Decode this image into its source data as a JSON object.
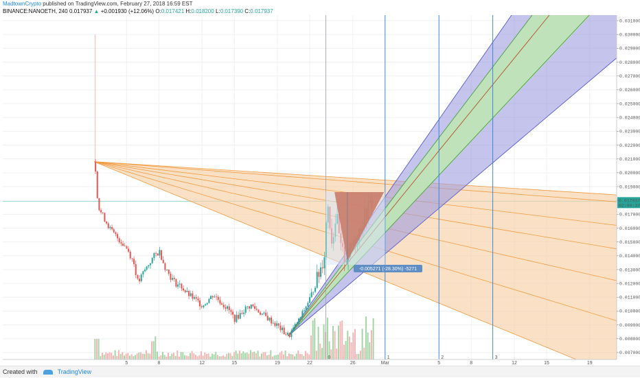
{
  "header": {
    "author": "MadtownCrypto",
    "published": " published on TradingView.com, February 27, 2018 16:59 EST",
    "symbol": "BINANCE:NANOETH, 240",
    "last": "0.017937",
    "change": "+0.001930 (+12.06%)",
    "open_label": "O:",
    "open": "0.017421",
    "high_label": "H:",
    "high": "0.018200",
    "low_label": "L:",
    "low": "0.017390",
    "close_label": "C:",
    "close": "0.017937"
  },
  "footer": {
    "created_with": "Created with",
    "brand": "TradingView"
  },
  "chart_data": {
    "type": "candlestick",
    "y_ticks": [
      "0.031000",
      "0.030000",
      "0.029000",
      "0.028000",
      "0.027000",
      "0.026000",
      "0.025000",
      "0.024000",
      "0.023000",
      "0.022000",
      "0.021000",
      "0.020000",
      "0.019000",
      "0.018000",
      "0.017000",
      "0.016000",
      "0.015000",
      "0.014000",
      "0.013000",
      "0.012000",
      "0.011000",
      "0.010000",
      "0.009000",
      "0.008000",
      "0.007000"
    ],
    "ylim": [
      0.0065,
      0.0314
    ],
    "x_ticks": [
      {
        "label": "5",
        "d": 5
      },
      {
        "label": "8",
        "d": 8
      },
      {
        "label": "12",
        "d": 12
      },
      {
        "label": "15",
        "d": 15
      },
      {
        "label": "19",
        "d": 19
      },
      {
        "label": "22",
        "d": 22
      },
      {
        "label": "26",
        "d": 26
      },
      {
        "label": "Mar",
        "d": 29
      },
      {
        "label": "5",
        "d": 34
      },
      {
        "label": "8",
        "d": 37
      },
      {
        "label": "12",
        "d": 41
      },
      {
        "label": "15",
        "d": 44
      },
      {
        "label": "19",
        "d": 48
      }
    ],
    "price_label": "0.017937",
    "countdown_label": "02:00:37",
    "measure_label": "-0.005271 (-28.30%) -5271",
    "time_markers": [
      "0",
      "1",
      "2",
      "3"
    ],
    "colors": {
      "up": "#26a69a",
      "down": "#ef5350",
      "fan_fill": "#f7cfa6",
      "fan_line": "#f29a3f",
      "blue_fill": "#9c9ce0",
      "green_fill": "#bfe5b5",
      "measure_fill": "#c77662",
      "vline": "#2a7de1"
    },
    "price_path": [
      {
        "d": 2.0,
        "p": 0.0208
      },
      {
        "d": 2.3,
        "p": 0.0175
      },
      {
        "d": 2.8,
        "p": 0.0168
      },
      {
        "d": 3.5,
        "p": 0.0158
      },
      {
        "d": 4.2,
        "p": 0.0152
      },
      {
        "d": 5.0,
        "p": 0.0145
      },
      {
        "d": 5.6,
        "p": 0.0135
      },
      {
        "d": 6.0,
        "p": 0.012
      },
      {
        "d": 6.5,
        "p": 0.0128
      },
      {
        "d": 7.0,
        "p": 0.0134
      },
      {
        "d": 7.5,
        "p": 0.014
      },
      {
        "d": 8.0,
        "p": 0.0143
      },
      {
        "d": 8.5,
        "p": 0.0132
      },
      {
        "d": 9.0,
        "p": 0.0125
      },
      {
        "d": 9.5,
        "p": 0.012
      },
      {
        "d": 10.0,
        "p": 0.0118
      },
      {
        "d": 10.5,
        "p": 0.0113
      },
      {
        "d": 11.0,
        "p": 0.011
      },
      {
        "d": 11.5,
        "p": 0.0107
      },
      {
        "d": 12.0,
        "p": 0.0104
      },
      {
        "d": 12.5,
        "p": 0.0108
      },
      {
        "d": 13.0,
        "p": 0.0112
      },
      {
        "d": 13.5,
        "p": 0.0108
      },
      {
        "d": 14.0,
        "p": 0.0104
      },
      {
        "d": 14.5,
        "p": 0.01
      },
      {
        "d": 15.0,
        "p": 0.0094
      },
      {
        "d": 15.5,
        "p": 0.0098
      },
      {
        "d": 16.0,
        "p": 0.0102
      },
      {
        "d": 16.5,
        "p": 0.0104
      },
      {
        "d": 17.0,
        "p": 0.0101
      },
      {
        "d": 17.5,
        "p": 0.0098
      },
      {
        "d": 18.0,
        "p": 0.0095
      },
      {
        "d": 18.5,
        "p": 0.0092
      },
      {
        "d": 19.0,
        "p": 0.0089
      },
      {
        "d": 19.5,
        "p": 0.0085
      },
      {
        "d": 20.0,
        "p": 0.0082
      },
      {
        "d": 20.5,
        "p": 0.0088
      },
      {
        "d": 21.0,
        "p": 0.0094
      },
      {
        "d": 21.5,
        "p": 0.0102
      },
      {
        "d": 22.0,
        "p": 0.011
      },
      {
        "d": 22.5,
        "p": 0.012
      },
      {
        "d": 23.0,
        "p": 0.0132
      },
      {
        "d": 23.3,
        "p": 0.0142
      },
      {
        "d": 23.6,
        "p": 0.018
      },
      {
        "d": 24.0,
        "p": 0.015
      },
      {
        "d": 24.4,
        "p": 0.017
      },
      {
        "d": 24.8,
        "p": 0.0145
      },
      {
        "d": 25.2,
        "p": 0.0138
      },
      {
        "d": 25.6,
        "p": 0.0142
      },
      {
        "d": 26.0,
        "p": 0.015
      },
      {
        "d": 26.5,
        "p": 0.0158
      },
      {
        "d": 27.0,
        "p": 0.0168
      },
      {
        "d": 27.5,
        "p": 0.0176
      },
      {
        "d": 27.8,
        "p": 0.01794
      }
    ]
  }
}
